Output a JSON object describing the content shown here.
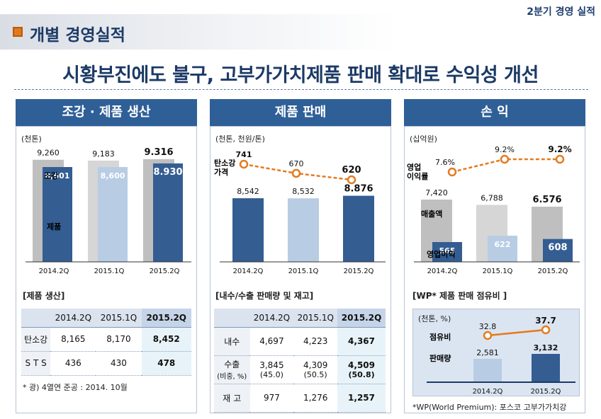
{
  "header": {
    "corner_label": "2분기 경영 실적",
    "page_title": "개별 경영실적",
    "headline": "시황부진에도 불구, 고부가가치제품 판매 확대로 수익성 개선"
  },
  "panels": {
    "production": {
      "title": "조강 · 제품 생산",
      "unit": "(천톤)"
    },
    "sales": {
      "title": "제품 판매",
      "unit": "(천톤, 천원/톤)"
    },
    "profit": {
      "title": "손 익",
      "unit": "(십억원)"
    }
  },
  "colors": {
    "dark_bar": "#345d92",
    "light_bar": "#b8cce4",
    "gray_bar": "#bfbfbf",
    "orange": "#e47b1f",
    "navy": "#1c3a66"
  },
  "chart_data": [
    {
      "type": "bar",
      "id": "production",
      "categories": [
        "2014.2Q",
        "2015.1Q",
        "2015.2Q"
      ],
      "series": [
        {
          "name": "조강",
          "values": [
            9260,
            9183,
            9316
          ],
          "labels": [
            "9,260",
            "9,183",
            "9.316"
          ]
        },
        {
          "name": "제품",
          "values": [
            8601,
            8600,
            8930
          ],
          "labels": [
            "8,601",
            "8,600",
            "8.930"
          ]
        }
      ]
    },
    {
      "type": "bar",
      "id": "sales",
      "categories": [
        "2014.2Q",
        "2015.1Q",
        "2015.2Q"
      ],
      "series": [
        {
          "values": [
            8542,
            8532,
            8876
          ],
          "labels": [
            "8,542",
            "8,532",
            "8.876"
          ]
        },
        {
          "name": "탄소강 가격",
          "values": [
            741,
            670,
            620
          ],
          "labels": [
            "741",
            "670",
            "620"
          ]
        }
      ]
    },
    {
      "type": "bar",
      "id": "profit",
      "categories": [
        "2014.2Q",
        "2015.1Q",
        "2015.2Q"
      ],
      "series": [
        {
          "name": "매출액",
          "values": [
            7420,
            6788,
            6576
          ],
          "labels": [
            "7,420",
            "6,788",
            "6.576"
          ]
        },
        {
          "name": "영업이익",
          "values": [
            565,
            622,
            608
          ],
          "labels": [
            "565",
            "622",
            "608"
          ]
        },
        {
          "name": "영업 이익률",
          "values": [
            7.6,
            9.2,
            9.2
          ],
          "labels": [
            "7.6%",
            "9.2%",
            "9.2%"
          ]
        }
      ]
    },
    {
      "type": "bar",
      "id": "wp",
      "title": "[WP* 제품 판매 점유비 ]",
      "unit": "(천톤, %)",
      "categories": [
        "2014.2Q",
        "2015.2Q"
      ],
      "series": [
        {
          "name": "판매량",
          "values": [
            2581,
            3132
          ],
          "labels": [
            "2,581",
            "3,132"
          ]
        },
        {
          "name": "점유비",
          "values": [
            32.8,
            37.7
          ],
          "labels": [
            "32.8",
            "37.7"
          ]
        }
      ]
    }
  ],
  "tables": {
    "production": {
      "label": "[제품 생산]",
      "columns": [
        "",
        "2014.2Q",
        "2015.1Q",
        "2015.2Q"
      ],
      "rows": [
        {
          "name": "탄소강",
          "cells": [
            "8,165",
            "8,170",
            "8,452"
          ]
        },
        {
          "name": "S T S",
          "cells": [
            "436",
            "430",
            "478"
          ]
        }
      ],
      "footnote": "* 광) 4열연 준공 : 2014. 10월"
    },
    "sales": {
      "label": "[내수/수출 판매량 및 재고]",
      "columns": [
        "",
        "2014.2Q",
        "2015.1Q",
        "2015.2Q"
      ],
      "rows": [
        {
          "name": "내수",
          "cells": [
            "4,697",
            "4,223",
            "4,367"
          ]
        },
        {
          "name": "수출",
          "sub": "(비중, %)",
          "cells": [
            "3,845",
            "4,309",
            "4,509"
          ],
          "subcells": [
            "(45.0)",
            "(50.5)",
            "(50.8)"
          ]
        },
        {
          "name": "재 고",
          "cells": [
            "977",
            "1,276",
            "1,257"
          ]
        }
      ]
    }
  },
  "wp_footnote": "*WP(World Premium): 포스코 고부가가치강"
}
